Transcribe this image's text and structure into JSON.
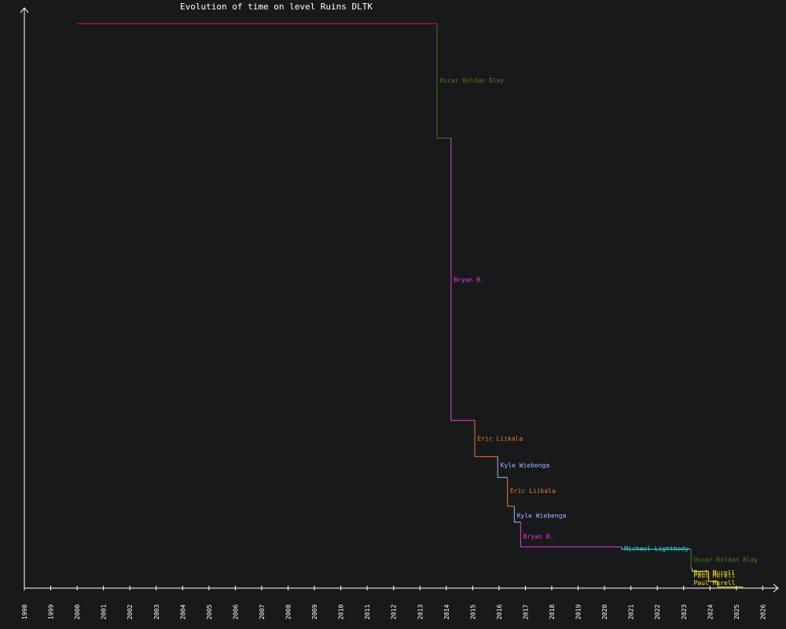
{
  "chart_data": {
    "type": "line",
    "title": "Evolution of time on level Ruins DLTK",
    "xlabel": "",
    "ylabel": "",
    "xlim": [
      1998,
      2026
    ],
    "x_ticks": [
      "1998",
      "1999",
      "2000",
      "2001",
      "2002",
      "2003",
      "2004",
      "2005",
      "2006",
      "2007",
      "2008",
      "2009",
      "2010",
      "2011",
      "2012",
      "2013",
      "2014",
      "2015",
      "2016",
      "2017",
      "2018",
      "2019",
      "2020",
      "2021",
      "2022",
      "2023",
      "2024",
      "2025",
      "2026"
    ],
    "y_ticks_shown": false,
    "grid": false,
    "legend": "none",
    "background_color": "#18191b",
    "axis_color": "#ffffff",
    "series": [
      {
        "name": "",
        "color": "#e8182c",
        "x": [
          2000.0,
          2013.65
        ],
        "y": [
          100.0,
          100.0
        ]
      },
      {
        "name": "Oscar Roldan Blay",
        "color": "#4e7a1c",
        "x": [
          2013.65,
          2014.18
        ],
        "y": [
          100.0,
          79.7
        ]
      },
      {
        "name": "Bryan B.",
        "color": "#e83ad8",
        "x": [
          2014.18,
          2015.08
        ],
        "y": [
          79.7,
          29.7
        ]
      },
      {
        "name": "Eric Liikala",
        "color": "#f0782a",
        "x": [
          2015.08,
          2015.95
        ],
        "y": [
          29.7,
          23.3
        ]
      },
      {
        "name": "Kyle Wiebenga",
        "color": "#a0b8ff",
        "x": [
          2015.95,
          2016.32
        ],
        "y": [
          23.3,
          19.6
        ]
      },
      {
        "name": "Eric Liikala",
        "color": "#f0782a",
        "x": [
          2016.32,
          2016.58
        ],
        "y": [
          19.6,
          14.5
        ]
      },
      {
        "name": "Kyle Wiebenga",
        "color": "#a0b8ff",
        "x": [
          2016.58,
          2016.82
        ],
        "y": [
          14.5,
          11.7
        ]
      },
      {
        "name": "Bryan B.",
        "color": "#e83ad8",
        "x": [
          2016.82,
          2020.65
        ],
        "y": [
          11.7,
          7.3
        ]
      },
      {
        "name": "Michael Lighthody",
        "color": "#3ed8d8",
        "x": [
          2020.65,
          2023.28
        ],
        "y": [
          7.3,
          6.9
        ]
      },
      {
        "name": "Oscar Roldan Blay",
        "color": "#4e7a1c",
        "x": [
          2023.28,
          2023.32
        ],
        "y": [
          6.9,
          3.4
        ]
      },
      {
        "name": "Paul Murell",
        "color": "#f0e020",
        "x": [
          2023.32,
          2023.95
        ],
        "y": [
          3.4,
          3.0
        ]
      },
      {
        "name": "Paul Murell",
        "color": "#f0e020",
        "x": [
          2023.95,
          2024.3
        ],
        "y": [
          3.0,
          1.2
        ]
      },
      {
        "name": "Paul Murell",
        "color": "#f0e020",
        "x": [
          2024.3,
          2025.25
        ],
        "y": [
          1.2,
          0.2
        ]
      }
    ],
    "annotations": [
      {
        "text": "Oscar Roldan Blay",
        "color": "#4e7a1c",
        "x": 2013.75,
        "y": 90.0
      },
      {
        "text": "Bryan B.",
        "color": "#e83ad8",
        "x": 2014.28,
        "y": 54.7
      },
      {
        "text": "Eric Liikala",
        "color": "#f0782a",
        "x": 2015.18,
        "y": 26.5
      },
      {
        "text": "Kyle Wiebenga",
        "color": "#a0b8ff",
        "x": 2016.05,
        "y": 21.8
      },
      {
        "text": "Eric Liikala",
        "color": "#f0782a",
        "x": 2016.42,
        "y": 17.3
      },
      {
        "text": "Kyle Wiebenga",
        "color": "#a0b8ff",
        "x": 2016.68,
        "y": 12.9
      },
      {
        "text": "Bryan B.",
        "color": "#e83ad8",
        "x": 2016.92,
        "y": 9.2
      },
      {
        "text": "Michael Lighthody",
        "color": "#3ed8d8",
        "x": 2020.75,
        "y": 7.0
      },
      {
        "text": "Oscar Roldan Blay",
        "color": "#4e7a1c",
        "x": 2023.38,
        "y": 5.1
      },
      {
        "text": "Paul Murell",
        "color": "#f0e020",
        "x": 2023.38,
        "y": 2.8
      },
      {
        "text": "Paul Murell",
        "color": "#f0e020",
        "x": 2023.38,
        "y": 2.3
      },
      {
        "text": "Paul Murell",
        "color": "#f0e020",
        "x": 2023.38,
        "y": 1.0
      }
    ]
  }
}
